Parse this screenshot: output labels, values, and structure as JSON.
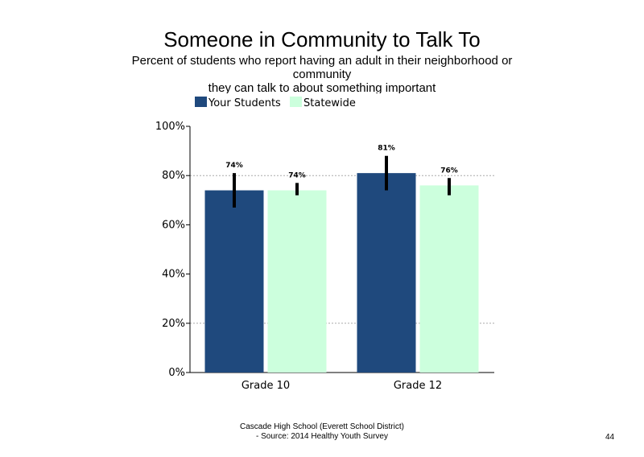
{
  "slide": {
    "title": "Someone in Community to Talk To",
    "subtitle": "Percent of students who report having an adult in their neighborhood or community\nthey can talk to about something important",
    "footer_line1": "Cascade High School (Everett School District)",
    "footer_line2": "- Source: 2014 Healthy Youth Survey",
    "page_number": "44"
  },
  "chart_data": {
    "type": "bar",
    "categories": [
      "Grade 10",
      "Grade 12"
    ],
    "series": [
      {
        "name": "Your Students",
        "color": "#1f497d",
        "values": [
          74,
          81
        ],
        "err_low": [
          67,
          74
        ],
        "err_high": [
          81,
          88
        ]
      },
      {
        "name": "Statewide",
        "color": "#ccffdd",
        "values": [
          74,
          76
        ],
        "err_low": [
          72,
          72
        ],
        "err_high": [
          77,
          79
        ]
      }
    ],
    "data_labels": [
      [
        "74%",
        "81%"
      ],
      [
        "74%",
        "76%"
      ]
    ],
    "ylim": [
      0,
      100
    ],
    "yticks": [
      0,
      20,
      40,
      60,
      80,
      100
    ],
    "ytick_labels": [
      "0%",
      "20%",
      "40%",
      "60%",
      "80%",
      "100%"
    ],
    "gridlines": [
      20,
      80
    ],
    "legend_position": "top-left"
  }
}
